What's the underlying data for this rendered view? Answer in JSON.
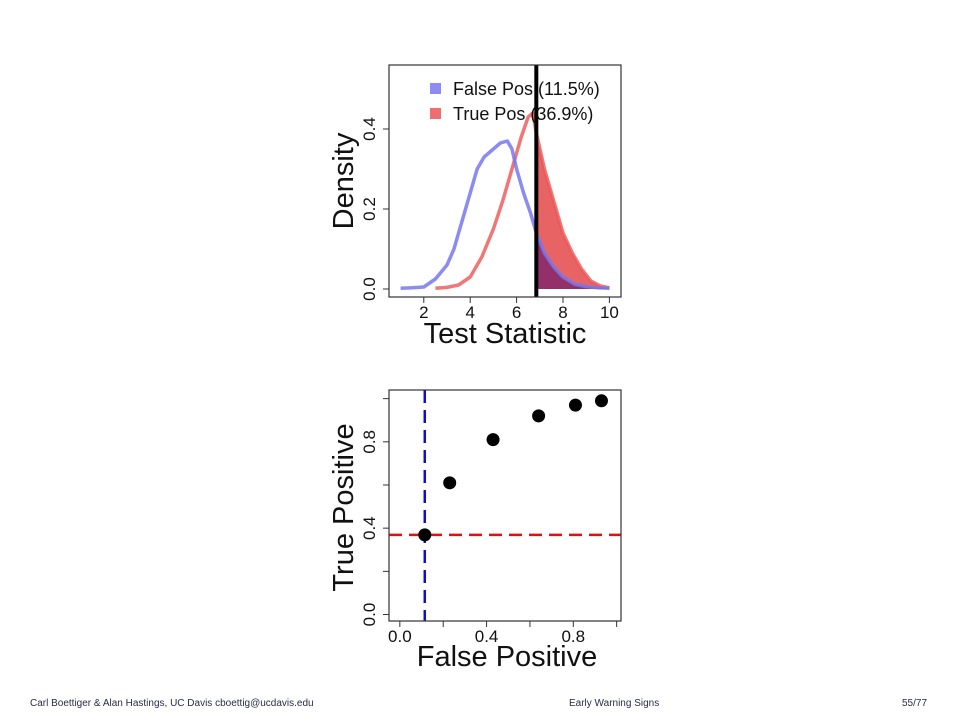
{
  "footer": {
    "left": "Carl Boettiger & Alan Hastings, UC Davis cboettig@ucdavis.edu",
    "center": "Early Warning Signs",
    "page": "55/77"
  },
  "colors": {
    "false_pos": "#7777ee",
    "true_pos": "#ee5555",
    "threshold": "#000000",
    "overlap_fill": "#8a2a6a",
    "true_fill": "#e44848",
    "ref_h": "#dd1111",
    "ref_v": "#1111bb",
    "points": "#000000",
    "frame": "#333333"
  },
  "chart_data": [
    {
      "type": "line",
      "xlabel": "Test Statistic",
      "ylabel": "Density",
      "xlim": [
        0.5,
        10.5
      ],
      "ylim": [
        -0.02,
        0.56
      ],
      "xticks": [
        2,
        4,
        6,
        8,
        10
      ],
      "yticks": [
        0.0,
        0.2,
        0.4
      ],
      "grid": false,
      "legend_position": "top-right",
      "threshold": 6.85,
      "series": [
        {
          "name": "False Pos (11.5%)",
          "x": [
            1.0,
            1.5,
            2.0,
            2.5,
            3.0,
            3.3,
            3.6,
            4.0,
            4.3,
            4.6,
            5.0,
            5.3,
            5.6,
            5.8,
            6.0,
            6.3,
            6.6,
            6.85,
            7.2,
            7.6,
            8.0,
            8.5,
            9.0,
            9.5,
            10.0
          ],
          "y": [
            0.002,
            0.003,
            0.005,
            0.025,
            0.06,
            0.1,
            0.16,
            0.24,
            0.3,
            0.33,
            0.35,
            0.365,
            0.37,
            0.35,
            0.3,
            0.24,
            0.19,
            0.14,
            0.09,
            0.055,
            0.03,
            0.012,
            0.006,
            0.003,
            0.002
          ]
        },
        {
          "name": "True Pos (36.9%)",
          "x": [
            2.5,
            3.0,
            3.5,
            4.0,
            4.5,
            5.0,
            5.4,
            5.8,
            6.2,
            6.5,
            6.7,
            6.85,
            7.2,
            7.6,
            8.0,
            8.4,
            8.8,
            9.2,
            9.6,
            10.0
          ],
          "y": [
            0.002,
            0.004,
            0.01,
            0.03,
            0.08,
            0.15,
            0.22,
            0.3,
            0.38,
            0.43,
            0.44,
            0.39,
            0.3,
            0.22,
            0.14,
            0.09,
            0.05,
            0.02,
            0.008,
            0.003
          ]
        }
      ]
    },
    {
      "type": "scatter",
      "xlabel": "False Positive",
      "ylabel": "True Positive",
      "xlim": [
        -0.05,
        1.02
      ],
      "ylim": [
        -0.03,
        1.04
      ],
      "xticks": [
        0.0,
        0.4,
        0.8
      ],
      "yticks": [
        0.0,
        0.4,
        0.8
      ],
      "grid": false,
      "reference_lines": {
        "horizontal": 0.369,
        "vertical": 0.115
      },
      "series": [
        {
          "x": [
            0.115,
            0.23,
            0.43,
            0.64,
            0.81,
            0.93
          ],
          "y": [
            0.369,
            0.61,
            0.81,
            0.92,
            0.97,
            0.99
          ]
        }
      ]
    }
  ]
}
